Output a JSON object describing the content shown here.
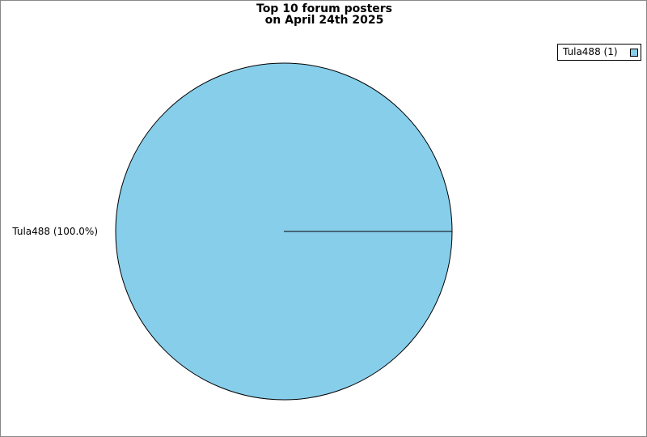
{
  "chart_data": {
    "type": "pie",
    "title": "Top 10 forum posters",
    "subtitle": "on April 24th 2025",
    "slices": [
      {
        "label": "Tula488",
        "value": 1,
        "percent_label": "Tula488 (100.0%)",
        "legend_label": "Tula488 (1)",
        "color": "#87ceeb"
      }
    ],
    "legend": "top-right"
  }
}
